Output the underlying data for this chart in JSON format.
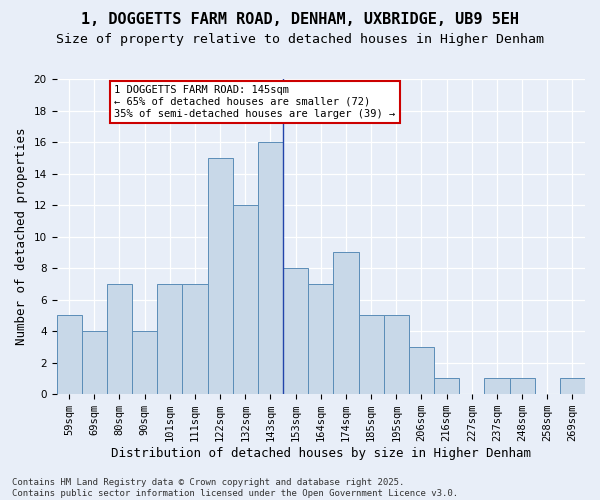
{
  "title": "1, DOGGETTS FARM ROAD, DENHAM, UXBRIDGE, UB9 5EH",
  "subtitle": "Size of property relative to detached houses in Higher Denham",
  "xlabel": "Distribution of detached houses by size in Higher Denham",
  "ylabel": "Number of detached properties",
  "bar_color": "#c8d8e8",
  "bar_edge_color": "#5b8db8",
  "bins": [
    "59sqm",
    "69sqm",
    "80sqm",
    "90sqm",
    "101sqm",
    "111sqm",
    "122sqm",
    "132sqm",
    "143sqm",
    "153sqm",
    "164sqm",
    "174sqm",
    "185sqm",
    "195sqm",
    "206sqm",
    "216sqm",
    "227sqm",
    "237sqm",
    "248sqm",
    "258sqm",
    "269sqm"
  ],
  "values": [
    5,
    4,
    7,
    4,
    7,
    7,
    15,
    12,
    16,
    8,
    7,
    9,
    5,
    5,
    3,
    1,
    0,
    1,
    1,
    0,
    1
  ],
  "ylim": [
    0,
    20
  ],
  "yticks": [
    0,
    2,
    4,
    6,
    8,
    10,
    12,
    14,
    16,
    18,
    20
  ],
  "property_line_x": 8.5,
  "annotation_text": "1 DOGGETTS FARM ROAD: 145sqm\n← 65% of detached houses are smaller (72)\n35% of semi-detached houses are larger (39) →",
  "annotation_box_color": "#ffffff",
  "annotation_box_edge": "#cc0000",
  "background_color": "#e8eef8",
  "footer": "Contains HM Land Registry data © Crown copyright and database right 2025.\nContains public sector information licensed under the Open Government Licence v3.0.",
  "title_fontsize": 11,
  "subtitle_fontsize": 9.5,
  "label_fontsize": 9,
  "tick_fontsize": 7.5,
  "footer_fontsize": 6.5
}
